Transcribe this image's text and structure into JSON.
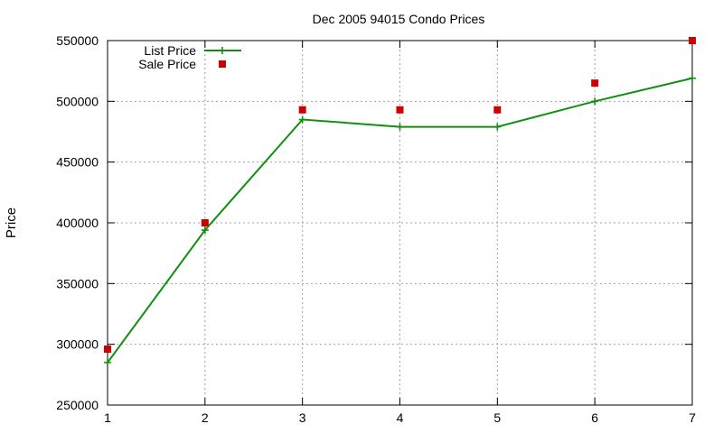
{
  "chart_data": {
    "type": "line",
    "title": "Dec 2005 94015 Condo Prices",
    "xlabel": "",
    "ylabel": "Price",
    "x": [
      1,
      2,
      3,
      4,
      5,
      6,
      7
    ],
    "xlim": [
      1,
      7
    ],
    "ylim": [
      250000,
      550000
    ],
    "xticks": [
      "1",
      "2",
      "3",
      "4",
      "5",
      "6",
      "7"
    ],
    "yticks": [
      "250000",
      "300000",
      "350000",
      "400000",
      "450000",
      "500000",
      "550000"
    ],
    "grid": true,
    "legend_position": "top-left",
    "series": [
      {
        "name": "List Price",
        "style": "line with plus markers",
        "color": "#109010",
        "values": [
          285000,
          394000,
          485000,
          479000,
          479000,
          500000,
          519000
        ]
      },
      {
        "name": "Sale Price",
        "style": "square markers",
        "color": "#cc0000",
        "values": [
          296000,
          400000,
          493000,
          493000,
          493000,
          515000,
          550000
        ]
      }
    ]
  }
}
